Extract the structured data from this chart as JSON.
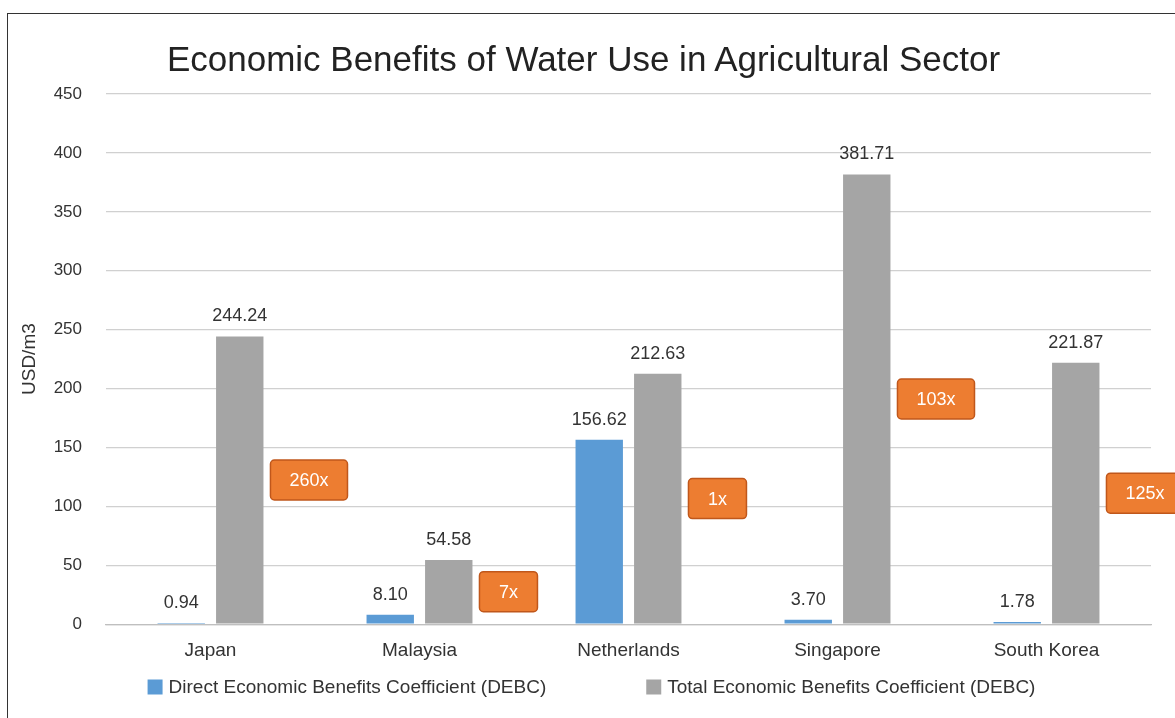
{
  "chart_data": {
    "type": "bar",
    "title": "Economic Benefits of Water Use in Agricultural Sector",
    "ylabel": "USD/m3",
    "categories": [
      "Japan",
      "Malaysia",
      "Netherlands",
      "Singapore",
      "South Korea"
    ],
    "series": [
      {
        "name": "Direct Economic Benefits Coefficient (DEBC)",
        "color": "#5b9bd5",
        "values": [
          0.94,
          8.1,
          156.62,
          3.7,
          1.78
        ],
        "value_labels": [
          "0.94",
          "8.10",
          "156.62",
          "3.70",
          "1.78"
        ]
      },
      {
        "name": "Total Economic Benefits Coefficient (DEBC)",
        "color": "#a5a5a5",
        "values": [
          244.24,
          54.58,
          212.63,
          381.71,
          221.87
        ],
        "value_labels": [
          "244.24",
          "54.58",
          "212.63",
          "381.71",
          "221.87"
        ]
      }
    ],
    "ylim": [
      0,
      450
    ],
    "yticks": [
      0,
      50,
      100,
      150,
      200,
      250,
      300,
      350,
      400,
      450
    ],
    "grid": "y",
    "legend": "bottom",
    "annotations": [
      "260x",
      "7x",
      "1x",
      "103x",
      "125x"
    ]
  }
}
